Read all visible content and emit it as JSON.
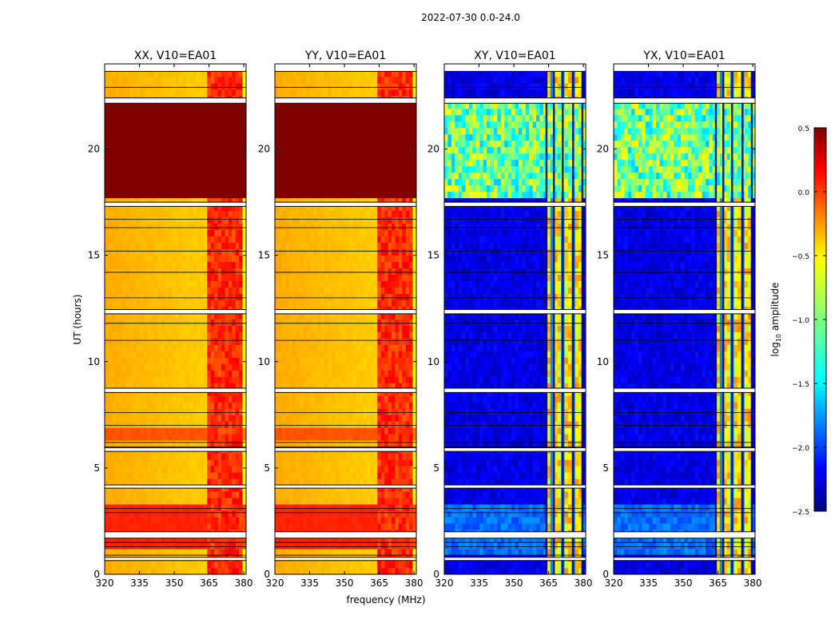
{
  "suptitle": "2022-07-30 0.0-24.0",
  "chart_data": {
    "type": "heatmap",
    "shared_xlabel": "frequency (MHz)",
    "shared_ylabel": "UT (hours)",
    "xlim": [
      320,
      381
    ],
    "ylim": [
      0,
      24
    ],
    "xticks": [
      320,
      335,
      350,
      365,
      380
    ],
    "yticks": [
      0,
      5,
      10,
      15,
      20
    ],
    "colorbar": {
      "label": "log10 amplitude",
      "label_base": "log",
      "label_sub": "10",
      "label_rest": " amplitude",
      "min": -2.5,
      "max": 0.5,
      "ticks": [
        "0.5",
        "0.0",
        "−0.5",
        "−1.0",
        "−1.5",
        "−2.0",
        "−2.5"
      ],
      "colormap": "jet"
    },
    "panels": [
      {
        "title": "XX, V10=EA01",
        "type": "autocorrelation"
      },
      {
        "title": "YY, V10=EA01",
        "type": "autocorrelation"
      },
      {
        "title": "XY, V10=EA01",
        "type": "crosscorrelation"
      },
      {
        "title": "YX, V10=EA01",
        "type": "crosscorrelation"
      }
    ],
    "rfi_band_mhz": [
      363.5,
      379.5
    ],
    "high_amplitude_period_ut": [
      17.6,
      22.1
    ]
  }
}
